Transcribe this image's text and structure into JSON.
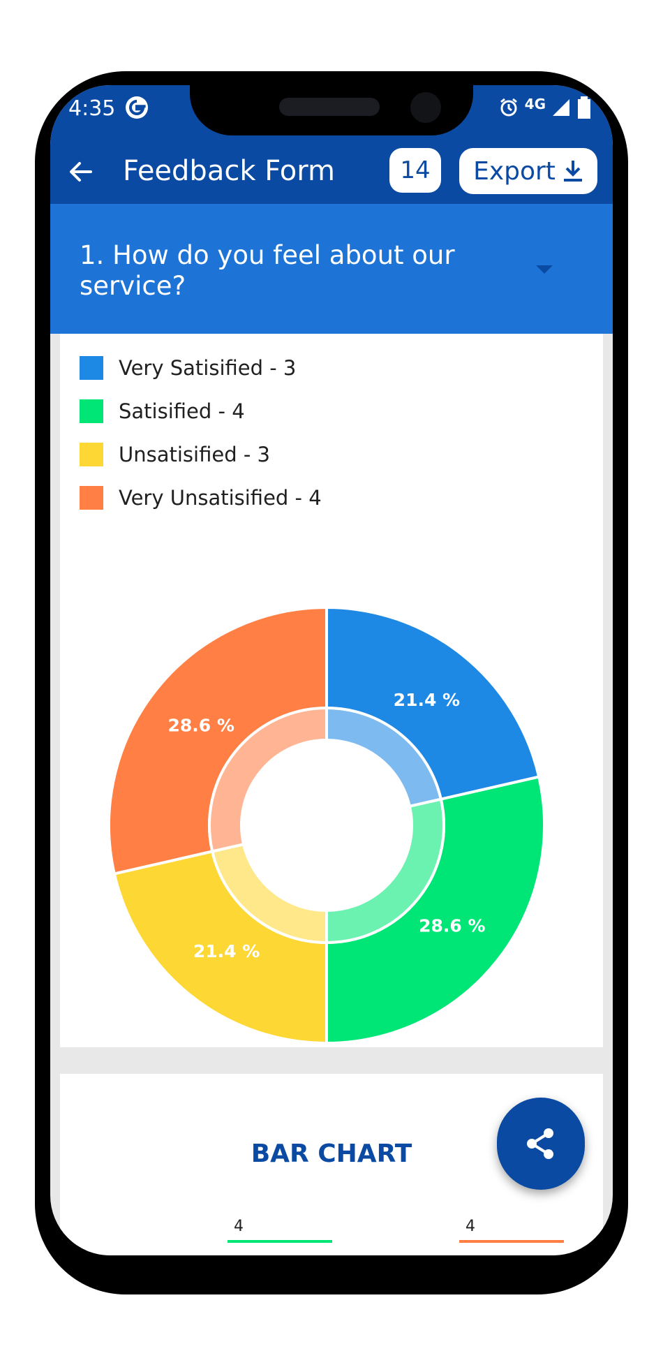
{
  "status_bar": {
    "time": "4:35",
    "network": "4G",
    "icons": [
      "google-icon",
      "alarm-icon",
      "signal-icon",
      "battery-icon"
    ]
  },
  "app_bar": {
    "title": "Feedback Form",
    "response_count": "14",
    "export_label": "Export",
    "icons": [
      "back-arrow-icon",
      "download-icon"
    ]
  },
  "question": {
    "text": "1. How do you feel about our service?",
    "icon": "dropdown-caret-icon"
  },
  "legend": [
    {
      "label": "Very Satisified - 3",
      "color": "#1e88e5"
    },
    {
      "label": "Satisified - 4",
      "color": "#00e676"
    },
    {
      "label": "Unsatisified - 3",
      "color": "#fdd835"
    },
    {
      "label": "Very Unsatisified - 4",
      "color": "#ff7f45"
    }
  ],
  "chart_data": {
    "type": "pie",
    "variant": "donut",
    "categories": [
      "Very Satisified",
      "Satisified",
      "Unsatisified",
      "Very Unsatisified"
    ],
    "values": [
      3,
      4,
      3,
      4
    ],
    "percent_labels": [
      "21.4 %",
      "28.6 %",
      "21.4 %",
      "28.6 %"
    ],
    "colors": [
      "#1e88e5",
      "#00e676",
      "#fdd835",
      "#ff7f45"
    ],
    "legend_position": "top-left"
  },
  "bar_chart_section": {
    "title": "BAR CHART",
    "visible_bars": [
      {
        "value": "4",
        "color": "#00e676"
      },
      {
        "value": "4",
        "color": "#ff7f45"
      }
    ]
  },
  "fab": {
    "icon": "share-icon"
  }
}
